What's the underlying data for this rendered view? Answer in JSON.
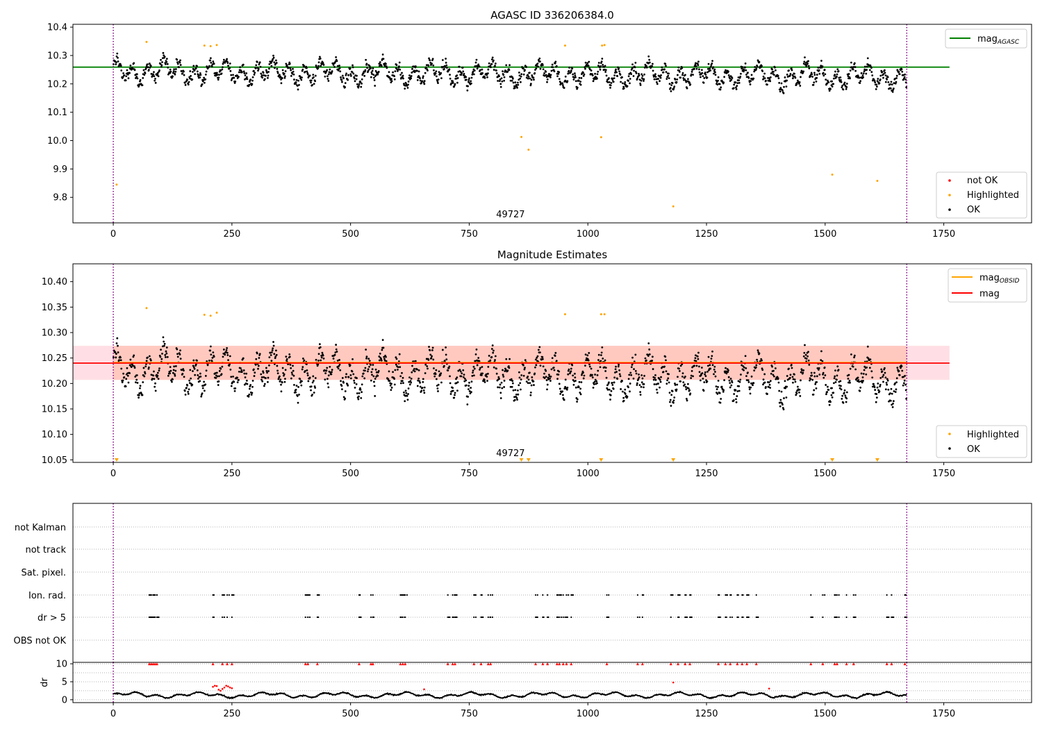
{
  "chart_data": [
    {
      "type": "scatter",
      "title": "AGASC ID 336206384.0",
      "xlim": [
        -85,
        1935
      ],
      "ylim": [
        9.71,
        10.41
      ],
      "xticks": [
        0,
        250,
        500,
        750,
        1000,
        1250,
        1500,
        1750
      ],
      "yticks": [
        9.8,
        9.9,
        10.0,
        10.1,
        10.2,
        10.3,
        10.4
      ],
      "ytick_labels": [
        "9.8",
        "9.9",
        "10.0",
        "10.1",
        "10.2",
        "10.3",
        "10.4"
      ],
      "grid": false,
      "obsid_label": {
        "text": "49727",
        "x": 837
      },
      "vlines": [
        0,
        1672
      ],
      "hline": {
        "name": "mag_AGASC",
        "label_main": "mag",
        "label_sub": "AGASC",
        "y": 10.259,
        "x": [
          -85,
          1762
        ],
        "color": "#008000"
      },
      "ok_series": {
        "name": "OK",
        "color": "#000000",
        "n": 1672,
        "base": 10.245,
        "trend": -0.02,
        "components": [
          [
            0.028,
            33,
            0.3
          ],
          [
            0.016,
            113,
            1.7
          ],
          [
            0.012,
            7,
            0.9
          ]
        ],
        "noise": 0.016
      },
      "highlighted": {
        "name": "Highlighted",
        "color": "#ffa500",
        "x": [
          7,
          70,
          192,
          205,
          218,
          860,
          875,
          952,
          1028,
          1030,
          1035,
          1180,
          1515,
          1610
        ],
        "y": [
          9.845,
          10.348,
          10.335,
          10.333,
          10.337,
          10.013,
          9.968,
          10.335,
          10.012,
          10.335,
          10.337,
          9.768,
          9.88,
          9.858
        ]
      },
      "legend_top": {
        "placement": "upper-right",
        "entries": [
          "mag_AGASC"
        ]
      },
      "legend_bottom": {
        "placement": "lower-right",
        "entries": [
          {
            "name": "not OK",
            "color": "#ff0000"
          },
          {
            "name": "Highlighted",
            "color": "#ffa500"
          },
          {
            "name": "OK",
            "color": "#000000"
          }
        ]
      }
    },
    {
      "type": "scatter",
      "title": "Magnitude Estimates",
      "xlim": [
        -85,
        1935
      ],
      "ylim": [
        10.045,
        10.435
      ],
      "xticks": [
        0,
        250,
        500,
        750,
        1000,
        1250,
        1500,
        1750
      ],
      "yticks": [
        10.05,
        10.1,
        10.15,
        10.2,
        10.25,
        10.3,
        10.35,
        10.4
      ],
      "ytick_labels": [
        "10.05",
        "10.10",
        "10.15",
        "10.20",
        "10.25",
        "10.30",
        "10.35",
        "10.40"
      ],
      "grid": false,
      "obsid_label": {
        "text": "49727",
        "x": 837
      },
      "vlines": [
        0,
        1672
      ],
      "mag_line": {
        "name": "mag",
        "y": 10.24,
        "x": [
          -85,
          1762
        ],
        "color": "#ff0000"
      },
      "mag_obsid_line": {
        "name": "mag_OBSID",
        "label_main": "mag",
        "label_sub": "OBSID",
        "y": 10.241,
        "x": [
          0,
          1672
        ],
        "color": "#ffa500"
      },
      "band_outer": {
        "y": [
          10.207,
          10.274
        ],
        "x": [
          -85,
          1762
        ],
        "color": "#ffc0cb"
      },
      "band_inner": {
        "y": [
          10.207,
          10.274
        ],
        "x": [
          0,
          1672
        ],
        "color": "#ffa07a"
      },
      "highlighted": {
        "name": "Highlighted",
        "color": "#ffa500",
        "x": [
          70,
          192,
          205,
          218,
          952,
          1028,
          1035
        ],
        "y": [
          10.348,
          10.335,
          10.333,
          10.339,
          10.336,
          10.336,
          10.336
        ]
      },
      "offscale_markers": {
        "color": "#ffa500",
        "x": [
          7,
          860,
          875,
          1028,
          1180,
          1515,
          1610
        ]
      },
      "legend_top": {
        "placement": "upper-right",
        "entries": [
          "mag_OBSID",
          "mag"
        ]
      },
      "legend_bottom": {
        "placement": "lower-right",
        "entries": [
          {
            "name": "Highlighted",
            "color": "#ffa500"
          },
          {
            "name": "OK",
            "color": "#000000"
          }
        ]
      }
    },
    {
      "type": "scatter",
      "title": "",
      "xlim": [
        -85,
        1935
      ],
      "xticks": [
        0,
        250,
        500,
        750,
        1000,
        1250,
        1500,
        1750
      ],
      "vlines": [
        0,
        1672
      ],
      "flag_rows": [
        "not Kalman",
        "not track",
        "Sat. pixel.",
        "Ion. rad.",
        "dr > 5",
        "OBS not OK"
      ],
      "flag_positions": [
        76,
        80,
        84,
        88,
        92,
        210,
        230,
        240,
        250,
        405,
        410,
        430,
        518,
        543,
        547,
        605,
        610,
        615,
        705,
        715,
        720,
        760,
        775,
        790,
        795,
        890,
        905,
        915,
        935,
        940,
        948,
        955,
        965,
        1040,
        1105,
        1115,
        1175,
        1190,
        1205,
        1215,
        1275,
        1290,
        1300,
        1315,
        1325,
        1335,
        1355,
        1470,
        1495,
        1520,
        1525,
        1545,
        1560,
        1630,
        1640,
        1668
      ]
    },
    {
      "type": "scatter",
      "ylabel": "dr",
      "xlim": [
        -85,
        1935
      ],
      "ylim": [
        -0.8,
        10.4
      ],
      "xticks": [
        0,
        250,
        500,
        750,
        1000,
        1250,
        1500,
        1750
      ],
      "yticks": [
        0,
        5,
        10
      ],
      "vlines": [
        0,
        1672
      ],
      "ok_series": {
        "name": "OK",
        "color": "#000000",
        "base": 1.3,
        "amp": 0.5
      },
      "not_ok_points": {
        "name": "not OK",
        "color": "#ff0000",
        "x": [
          210,
          214,
          218,
          222,
          226,
          230,
          234,
          238,
          242,
          246,
          250,
          655,
          1180,
          1382
        ],
        "y": [
          3.6,
          3.9,
          3.8,
          2.8,
          2.5,
          3.0,
          3.4,
          3.9,
          3.7,
          3.4,
          3.2,
          2.9,
          4.8,
          3.1
        ]
      },
      "capped_markers": {
        "color": "#ff0000",
        "y": 10
      }
    }
  ]
}
